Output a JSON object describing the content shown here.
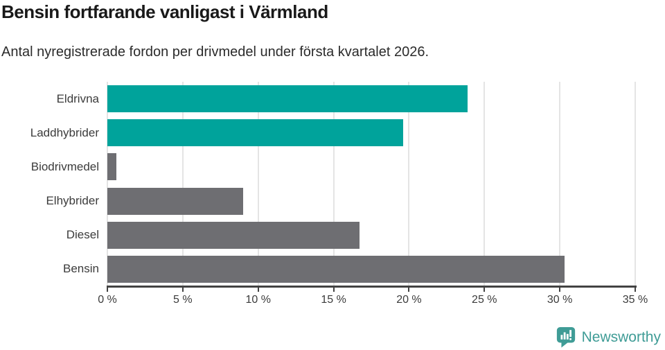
{
  "header": {
    "title": "Bensin fortfarande vanligast i Värmland",
    "subtitle": "Antal nyregistrerade fordon per drivmedel under första kvartalet 2026."
  },
  "chart_data": {
    "type": "bar",
    "orientation": "horizontal",
    "title": "Bensin fortfarande vanligast i Värmland",
    "subtitle": "Antal nyregistrerade fordon per drivmedel under första kvartalet 2026.",
    "categories": [
      "Eldrivna",
      "Laddhybrider",
      "Biodrivmedel",
      "Elhybrider",
      "Diesel",
      "Bensin"
    ],
    "values": [
      23.9,
      19.6,
      0.6,
      9.0,
      16.7,
      30.3
    ],
    "unit": "%",
    "xlim": [
      0,
      35
    ],
    "x_ticks": [
      0,
      5,
      10,
      15,
      20,
      25,
      30,
      35
    ],
    "x_tick_labels": [
      "0 %",
      "5 %",
      "10 %",
      "15 %",
      "20 %",
      "25 %",
      "30 %",
      "35 %"
    ],
    "bar_colors": [
      "#00a39b",
      "#00a39b",
      "#6e6e72",
      "#6e6e72",
      "#6e6e72",
      "#6e6e72"
    ],
    "grid": true,
    "legend": "none",
    "ylabel": "",
    "xlabel": ""
  },
  "colors": {
    "highlight_teal": "#00a39b",
    "base_gray": "#6e6e72",
    "gridline": "#e4e4e4",
    "axis": "#424242",
    "label_text": "#3b3b3b",
    "logo_teal": "#3f9c96"
  },
  "branding": {
    "logo_text": "Newsworthy",
    "logo_icon": "bar-chart-speech-bubble-icon"
  }
}
